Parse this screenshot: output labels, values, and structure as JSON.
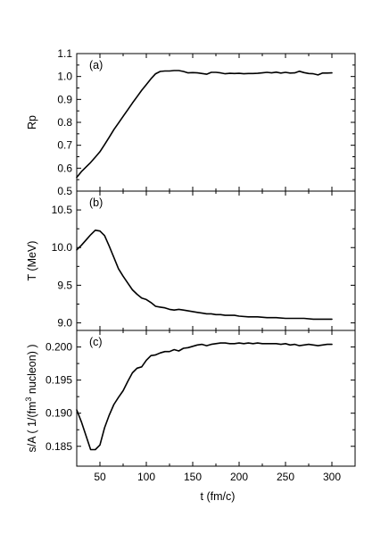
{
  "chart_data": [
    {
      "type": "line",
      "panel_label": "(a)",
      "ylabel": "Rp",
      "xlim": [
        25,
        325
      ],
      "ylim": [
        0.5,
        1.1
      ],
      "yticks": [
        0.5,
        0.6,
        0.7,
        0.8,
        0.9,
        1.0,
        1.1
      ],
      "ytick_labels": [
        "0.5",
        "0.6",
        "0.7",
        "0.8",
        "0.9",
        "1.0",
        "1.1"
      ],
      "grid": false,
      "series": [
        {
          "x": [
            25,
            30,
            35,
            40,
            45,
            50,
            55,
            60,
            65,
            70,
            75,
            80,
            85,
            90,
            95,
            100,
            105,
            110,
            115,
            120,
            125,
            130,
            135,
            140,
            145,
            150,
            155,
            160,
            165,
            170,
            175,
            180,
            185,
            190,
            195,
            200,
            205,
            210,
            215,
            220,
            225,
            230,
            235,
            240,
            245,
            250,
            255,
            260,
            265,
            270,
            275,
            280,
            285,
            290,
            295,
            300
          ],
          "y": [
            0.56,
            0.585,
            0.605,
            0.625,
            0.648,
            0.672,
            0.703,
            0.735,
            0.768,
            0.797,
            0.826,
            0.855,
            0.884,
            0.912,
            0.94,
            0.965,
            0.99,
            1.012,
            1.022,
            1.024,
            1.024,
            1.026,
            1.026,
            1.022,
            1.016,
            1.017,
            1.016,
            1.013,
            1.01,
            1.018,
            1.018,
            1.016,
            1.012,
            1.014,
            1.013,
            1.014,
            1.012,
            1.013,
            1.013,
            1.014,
            1.016,
            1.018,
            1.016,
            1.019,
            1.015,
            1.018,
            1.015,
            1.016,
            1.023,
            1.017,
            1.013,
            1.012,
            1.007,
            1.015,
            1.015,
            1.016
          ]
        }
      ]
    },
    {
      "type": "line",
      "panel_label": "(b)",
      "ylabel": "T (MeV)",
      "xlim": [
        25,
        325
      ],
      "ylim": [
        8.9,
        10.75
      ],
      "yticks": [
        9.0,
        9.5,
        10.0,
        10.5
      ],
      "ytick_labels": [
        "9.0",
        "9.5",
        "10.0",
        "10.5"
      ],
      "grid": false,
      "series": [
        {
          "x": [
            25,
            30,
            35,
            40,
            45,
            50,
            55,
            60,
            65,
            70,
            75,
            80,
            85,
            90,
            95,
            100,
            105,
            110,
            115,
            120,
            125,
            130,
            135,
            140,
            145,
            150,
            155,
            160,
            165,
            170,
            175,
            180,
            185,
            190,
            195,
            200,
            210,
            220,
            230,
            240,
            250,
            260,
            270,
            280,
            290,
            300
          ],
          "y": [
            9.97,
            10.03,
            10.1,
            10.17,
            10.23,
            10.22,
            10.16,
            10.02,
            9.87,
            9.72,
            9.62,
            9.53,
            9.44,
            9.38,
            9.33,
            9.31,
            9.27,
            9.22,
            9.21,
            9.2,
            9.18,
            9.17,
            9.18,
            9.17,
            9.16,
            9.15,
            9.14,
            9.13,
            9.12,
            9.12,
            9.11,
            9.11,
            9.1,
            9.1,
            9.1,
            9.09,
            9.08,
            9.08,
            9.07,
            9.07,
            9.06,
            9.06,
            9.06,
            9.05,
            9.05,
            9.05
          ]
        }
      ]
    },
    {
      "type": "line",
      "panel_label": "(c)",
      "ylabel": "s/A  ( 1/(fm3 nucleon) )",
      "xlabel": "t (fm/c)",
      "xlim": [
        25,
        325
      ],
      "ylim": [
        0.182,
        0.2025
      ],
      "yticks": [
        0.185,
        0.19,
        0.195,
        0.2
      ],
      "ytick_labels": [
        "0.185",
        "0.190",
        "0.195",
        "0.200"
      ],
      "xticks": [
        50,
        100,
        150,
        200,
        250,
        300
      ],
      "xtick_labels": [
        "50",
        "100",
        "150",
        "200",
        "250",
        "300"
      ],
      "grid": false,
      "series": [
        {
          "x": [
            25,
            30,
            35,
            40,
            45,
            50,
            55,
            60,
            65,
            70,
            75,
            80,
            85,
            90,
            95,
            100,
            105,
            110,
            115,
            120,
            125,
            130,
            135,
            140,
            145,
            150,
            155,
            160,
            165,
            170,
            175,
            180,
            185,
            190,
            195,
            200,
            205,
            210,
            215,
            220,
            225,
            230,
            235,
            240,
            245,
            250,
            255,
            260,
            265,
            270,
            275,
            280,
            285,
            290,
            295,
            300
          ],
          "y": [
            0.1905,
            0.1887,
            0.1866,
            0.1845,
            0.1845,
            0.1852,
            0.1878,
            0.1897,
            0.1913,
            0.1924,
            0.1934,
            0.1948,
            0.1961,
            0.1968,
            0.197,
            0.198,
            0.1987,
            0.1988,
            0.1991,
            0.1993,
            0.1993,
            0.1996,
            0.1994,
            0.1998,
            0.1999,
            0.2001,
            0.2003,
            0.2004,
            0.2002,
            0.2004,
            0.2005,
            0.2006,
            0.2006,
            0.2005,
            0.2005,
            0.2006,
            0.2005,
            0.2006,
            0.2005,
            0.2006,
            0.2005,
            0.2005,
            0.2005,
            0.2005,
            0.2004,
            0.2005,
            0.2003,
            0.2004,
            0.2002,
            0.2003,
            0.2004,
            0.2003,
            0.2002,
            0.2003,
            0.2004,
            0.2004
          ]
        }
      ]
    }
  ]
}
